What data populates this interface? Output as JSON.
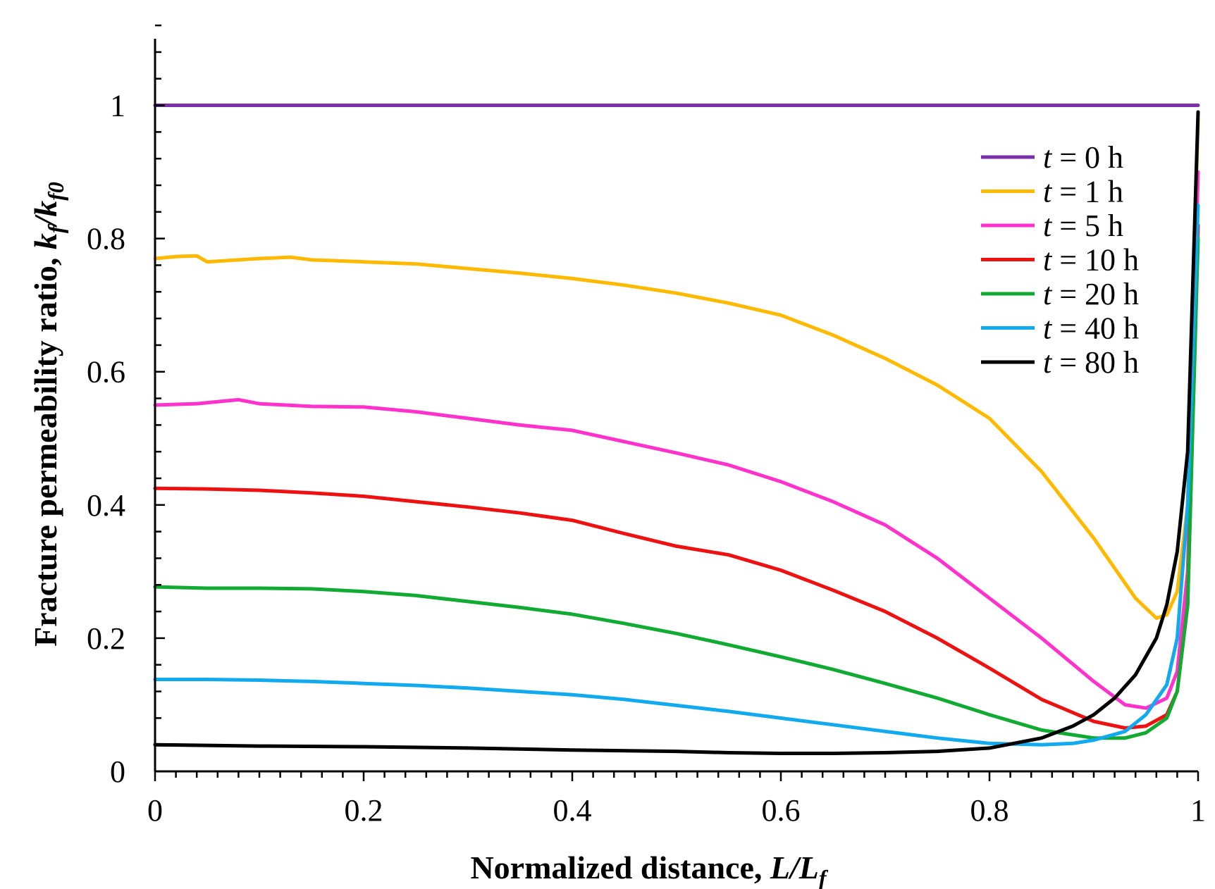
{
  "chart_data": {
    "type": "line",
    "title": "",
    "xlabel": {
      "main": "Normalized distance, ",
      "var": "L",
      "slash": "/",
      "var2": "L",
      "sub": "f"
    },
    "ylabel": {
      "main": "Fracture permeability ratio, ",
      "var": "k",
      "sub": "f",
      "slash": "/",
      "var2": "k",
      "sub2": "f0"
    },
    "xlim": [
      0,
      1
    ],
    "ylim": [
      0,
      1.1
    ],
    "xticks": [
      0,
      0.2,
      0.4,
      0.6,
      0.8,
      1
    ],
    "xtick_labels": [
      "0",
      "0.2",
      "0.4",
      "0.6",
      "0.8",
      "1"
    ],
    "yticks": [
      0,
      0.2,
      0.4,
      0.6,
      0.8,
      1
    ],
    "ytick_labels": [
      "0",
      "0.2",
      "0.4",
      "0.6",
      "0.8",
      "1"
    ],
    "legend_position": "top-right",
    "series": [
      {
        "name": "t = 0 h",
        "t_var": "t",
        "t_rest": " = 0 h",
        "color": "#7B2FA8",
        "x": [
          0,
          1
        ],
        "y": [
          1,
          1
        ]
      },
      {
        "name": "t = 1 h",
        "t_var": "t",
        "t_rest": " = 1 h",
        "color": "#FFBA00",
        "x": [
          0,
          0.02,
          0.04,
          0.05,
          0.08,
          0.1,
          0.13,
          0.15,
          0.2,
          0.25,
          0.3,
          0.35,
          0.4,
          0.45,
          0.5,
          0.55,
          0.6,
          0.65,
          0.7,
          0.75,
          0.8,
          0.85,
          0.9,
          0.94,
          0.96,
          0.97,
          0.98,
          0.99,
          1.0
        ],
        "y": [
          0.77,
          0.773,
          0.774,
          0.765,
          0.768,
          0.77,
          0.772,
          0.768,
          0.765,
          0.762,
          0.755,
          0.748,
          0.74,
          0.73,
          0.718,
          0.703,
          0.685,
          0.655,
          0.62,
          0.58,
          0.53,
          0.45,
          0.35,
          0.26,
          0.23,
          0.235,
          0.27,
          0.4,
          0.98
        ]
      },
      {
        "name": "t = 5 h",
        "t_var": "t",
        "t_rest": " = 5 h",
        "color": "#FF33CC",
        "x": [
          0,
          0.04,
          0.08,
          0.1,
          0.15,
          0.2,
          0.25,
          0.3,
          0.35,
          0.4,
          0.45,
          0.5,
          0.55,
          0.6,
          0.65,
          0.7,
          0.75,
          0.8,
          0.85,
          0.9,
          0.93,
          0.95,
          0.97,
          0.98,
          0.99,
          1.0
        ],
        "y": [
          0.55,
          0.552,
          0.558,
          0.552,
          0.548,
          0.547,
          0.54,
          0.53,
          0.52,
          0.512,
          0.495,
          0.478,
          0.46,
          0.435,
          0.405,
          0.37,
          0.32,
          0.26,
          0.2,
          0.135,
          0.1,
          0.095,
          0.11,
          0.15,
          0.3,
          0.9
        ]
      },
      {
        "name": "t = 10 h",
        "t_var": "t",
        "t_rest": " = 10 h",
        "color": "#EE1111",
        "x": [
          0,
          0.05,
          0.1,
          0.15,
          0.2,
          0.25,
          0.3,
          0.35,
          0.4,
          0.45,
          0.5,
          0.55,
          0.6,
          0.65,
          0.7,
          0.75,
          0.8,
          0.85,
          0.9,
          0.93,
          0.95,
          0.97,
          0.98,
          0.99,
          1.0
        ],
        "y": [
          0.425,
          0.424,
          0.422,
          0.418,
          0.413,
          0.405,
          0.397,
          0.388,
          0.377,
          0.357,
          0.338,
          0.325,
          0.302,
          0.272,
          0.24,
          0.2,
          0.155,
          0.108,
          0.075,
          0.065,
          0.068,
          0.085,
          0.12,
          0.25,
          0.82
        ]
      },
      {
        "name": "t = 20 h",
        "t_var": "t",
        "t_rest": " = 20 h",
        "color": "#11AA33",
        "x": [
          0,
          0.05,
          0.1,
          0.15,
          0.2,
          0.25,
          0.3,
          0.35,
          0.4,
          0.45,
          0.5,
          0.55,
          0.6,
          0.65,
          0.7,
          0.75,
          0.8,
          0.85,
          0.9,
          0.93,
          0.95,
          0.97,
          0.98,
          0.99,
          1.0
        ],
        "y": [
          0.277,
          0.275,
          0.275,
          0.274,
          0.27,
          0.264,
          0.255,
          0.246,
          0.236,
          0.222,
          0.207,
          0.19,
          0.172,
          0.153,
          0.132,
          0.11,
          0.085,
          0.062,
          0.05,
          0.05,
          0.058,
          0.08,
          0.12,
          0.25,
          0.8
        ]
      },
      {
        "name": "t = 40 h",
        "t_var": "t",
        "t_rest": " = 40 h",
        "color": "#11AAEE",
        "x": [
          0,
          0.05,
          0.1,
          0.15,
          0.2,
          0.25,
          0.3,
          0.35,
          0.4,
          0.45,
          0.5,
          0.55,
          0.6,
          0.65,
          0.7,
          0.75,
          0.8,
          0.85,
          0.88,
          0.9,
          0.93,
          0.95,
          0.97,
          0.98,
          0.99,
          1.0
        ],
        "y": [
          0.138,
          0.138,
          0.137,
          0.135,
          0.132,
          0.129,
          0.125,
          0.12,
          0.115,
          0.108,
          0.099,
          0.09,
          0.08,
          0.07,
          0.06,
          0.05,
          0.042,
          0.04,
          0.042,
          0.047,
          0.06,
          0.085,
          0.13,
          0.2,
          0.4,
          0.85
        ]
      },
      {
        "name": "t = 80 h",
        "t_var": "t",
        "t_rest": " = 80 h",
        "color": "#000000",
        "x": [
          0,
          0.1,
          0.2,
          0.3,
          0.4,
          0.5,
          0.55,
          0.6,
          0.65,
          0.7,
          0.75,
          0.8,
          0.85,
          0.88,
          0.9,
          0.92,
          0.94,
          0.96,
          0.97,
          0.98,
          0.99,
          1.0
        ],
        "y": [
          0.04,
          0.038,
          0.037,
          0.035,
          0.032,
          0.03,
          0.028,
          0.027,
          0.027,
          0.028,
          0.03,
          0.035,
          0.05,
          0.068,
          0.085,
          0.11,
          0.145,
          0.2,
          0.25,
          0.33,
          0.48,
          0.99
        ]
      }
    ]
  }
}
